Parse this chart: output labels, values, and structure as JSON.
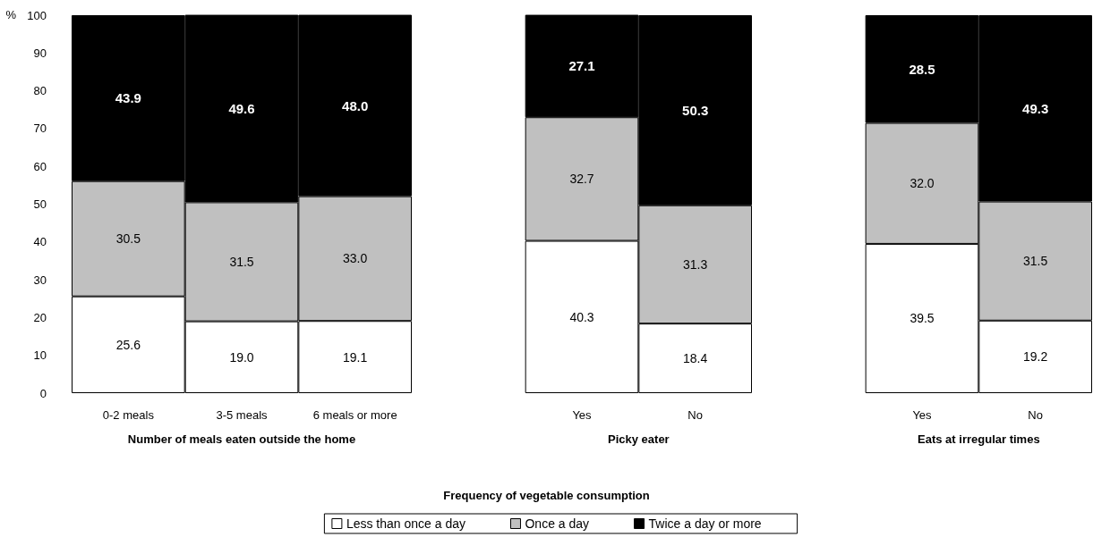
{
  "chart_data": {
    "type": "bar",
    "stacked": true,
    "ylabel": "%",
    "legend_title": "Frequency of vegetable consumption",
    "categories": [
      "0-2 meals",
      "3-5 meals",
      "6 meals or more",
      null,
      "Yes",
      "No",
      null,
      "Yes",
      "No"
    ],
    "series": [
      {
        "name": "Less than once a day",
        "color": "#ffffff",
        "values": [
          25.6,
          19.0,
          19.1,
          null,
          40.3,
          18.4,
          null,
          39.5,
          19.2
        ],
        "value_labels": [
          "25.6",
          "19.0",
          "19.1",
          null,
          "40.3",
          "18.4",
          null,
          "39.5",
          "19.2"
        ]
      },
      {
        "name": "Once a day",
        "color": "#c0c0c0",
        "values": [
          30.5,
          31.5,
          33.0,
          null,
          32.7,
          31.3,
          null,
          32.0,
          31.5
        ],
        "value_labels": [
          "30.5",
          "31.5",
          "33.0",
          null,
          "32.7",
          "31.3",
          null,
          "32.0",
          "31.5"
        ]
      },
      {
        "name": "Twice a day or more",
        "color": "#000000",
        "values": [
          43.9,
          49.6,
          48.0,
          null,
          27.1,
          50.3,
          null,
          28.5,
          49.3
        ],
        "value_labels": [
          "43.9",
          "49.6",
          "48.0",
          null,
          "27.1",
          "50.3",
          null,
          "28.5",
          "49.3"
        ]
      }
    ],
    "ylim": [
      0,
      100
    ],
    "yticks": [
      0,
      10,
      20,
      30,
      40,
      50,
      60,
      70,
      80,
      90,
      100
    ],
    "grid": false,
    "legend": "bottom",
    "annotations": [
      "Number of meals eaten outside the home",
      "Picky eater",
      "Eats at irregular times"
    ]
  }
}
